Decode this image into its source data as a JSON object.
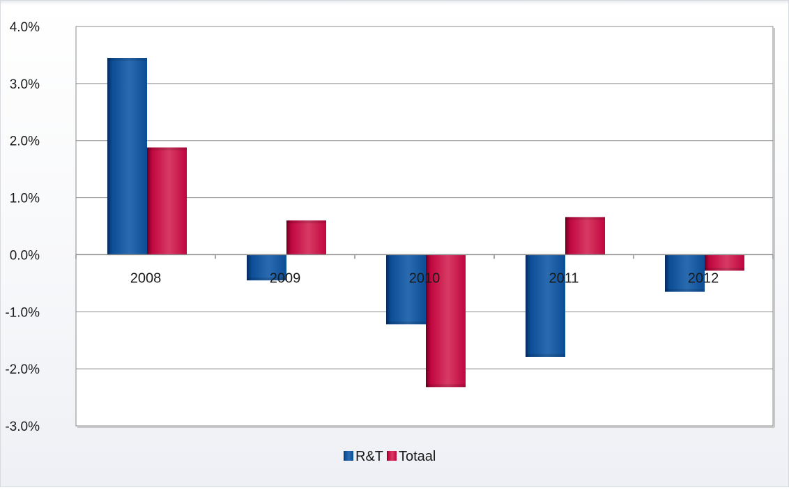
{
  "chart_data": {
    "type": "bar",
    "title": "",
    "xlabel": "",
    "ylabel": "",
    "categories": [
      "2008",
      "2009",
      "2010",
      "2011",
      "2012"
    ],
    "series": [
      {
        "name": "R&T",
        "color": "#0b4d96",
        "values": [
          3.45,
          -0.45,
          -1.22,
          -1.79,
          -0.65
        ]
      },
      {
        "name": "Totaal",
        "color": "#c0063f",
        "values": [
          1.88,
          0.6,
          -2.32,
          0.66,
          -0.28
        ]
      }
    ],
    "ylim": [
      -3,
      4
    ],
    "yticks": [
      4,
      3,
      2,
      1,
      0,
      -1,
      -2,
      -3
    ],
    "ytick_labels": [
      "4.0%",
      "3.0%",
      "2.0%",
      "1.0%",
      "0.0%",
      "-1.0%",
      "-2.0%",
      "-3.0%"
    ],
    "grid": true,
    "legend_position": "bottom"
  }
}
